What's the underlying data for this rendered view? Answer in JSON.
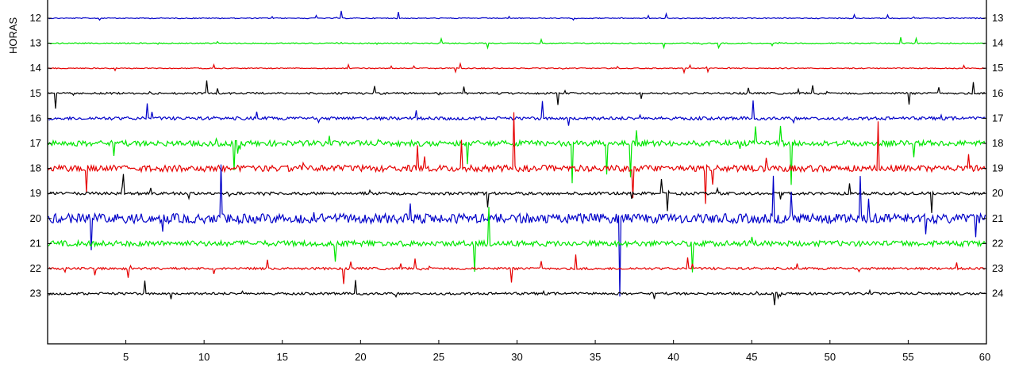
{
  "chart_data": {
    "type": "line",
    "title": "",
    "ylabel": "HORAS",
    "xlabel": "",
    "xlim": [
      0,
      60
    ],
    "x_ticks": [
      "5",
      "10",
      "15",
      "20",
      "25",
      "30",
      "35",
      "40",
      "45",
      "50",
      "55",
      "60"
    ],
    "rows": [
      {
        "left": "12",
        "right": "13",
        "color": "#0000c8",
        "amp": 0.6
      },
      {
        "left": "13",
        "right": "14",
        "color": "#00e600",
        "amp": 0.6
      },
      {
        "left": "14",
        "right": "15",
        "color": "#e60000",
        "amp": 0.6
      },
      {
        "left": "15",
        "right": "16",
        "color": "#000000",
        "amp": 1.2
      },
      {
        "left": "16",
        "right": "17",
        "color": "#0000c8",
        "amp": 2.0
      },
      {
        "left": "17",
        "right": "18",
        "color": "#00e600",
        "amp": 3.5
      },
      {
        "left": "18",
        "right": "19",
        "color": "#e60000",
        "amp": 4.0
      },
      {
        "left": "19",
        "right": "20",
        "color": "#000000",
        "amp": 1.8
      },
      {
        "left": "20",
        "right": "21",
        "color": "#0000c8",
        "amp": 6.0
      },
      {
        "left": "21",
        "right": "22",
        "color": "#00e600",
        "amp": 3.5
      },
      {
        "left": "22",
        "right": "23",
        "color": "#e60000",
        "amp": 1.5
      },
      {
        "left": "23",
        "right": "24",
        "color": "#000000",
        "amp": 1.5
      }
    ],
    "grid": false,
    "legend": "none"
  }
}
